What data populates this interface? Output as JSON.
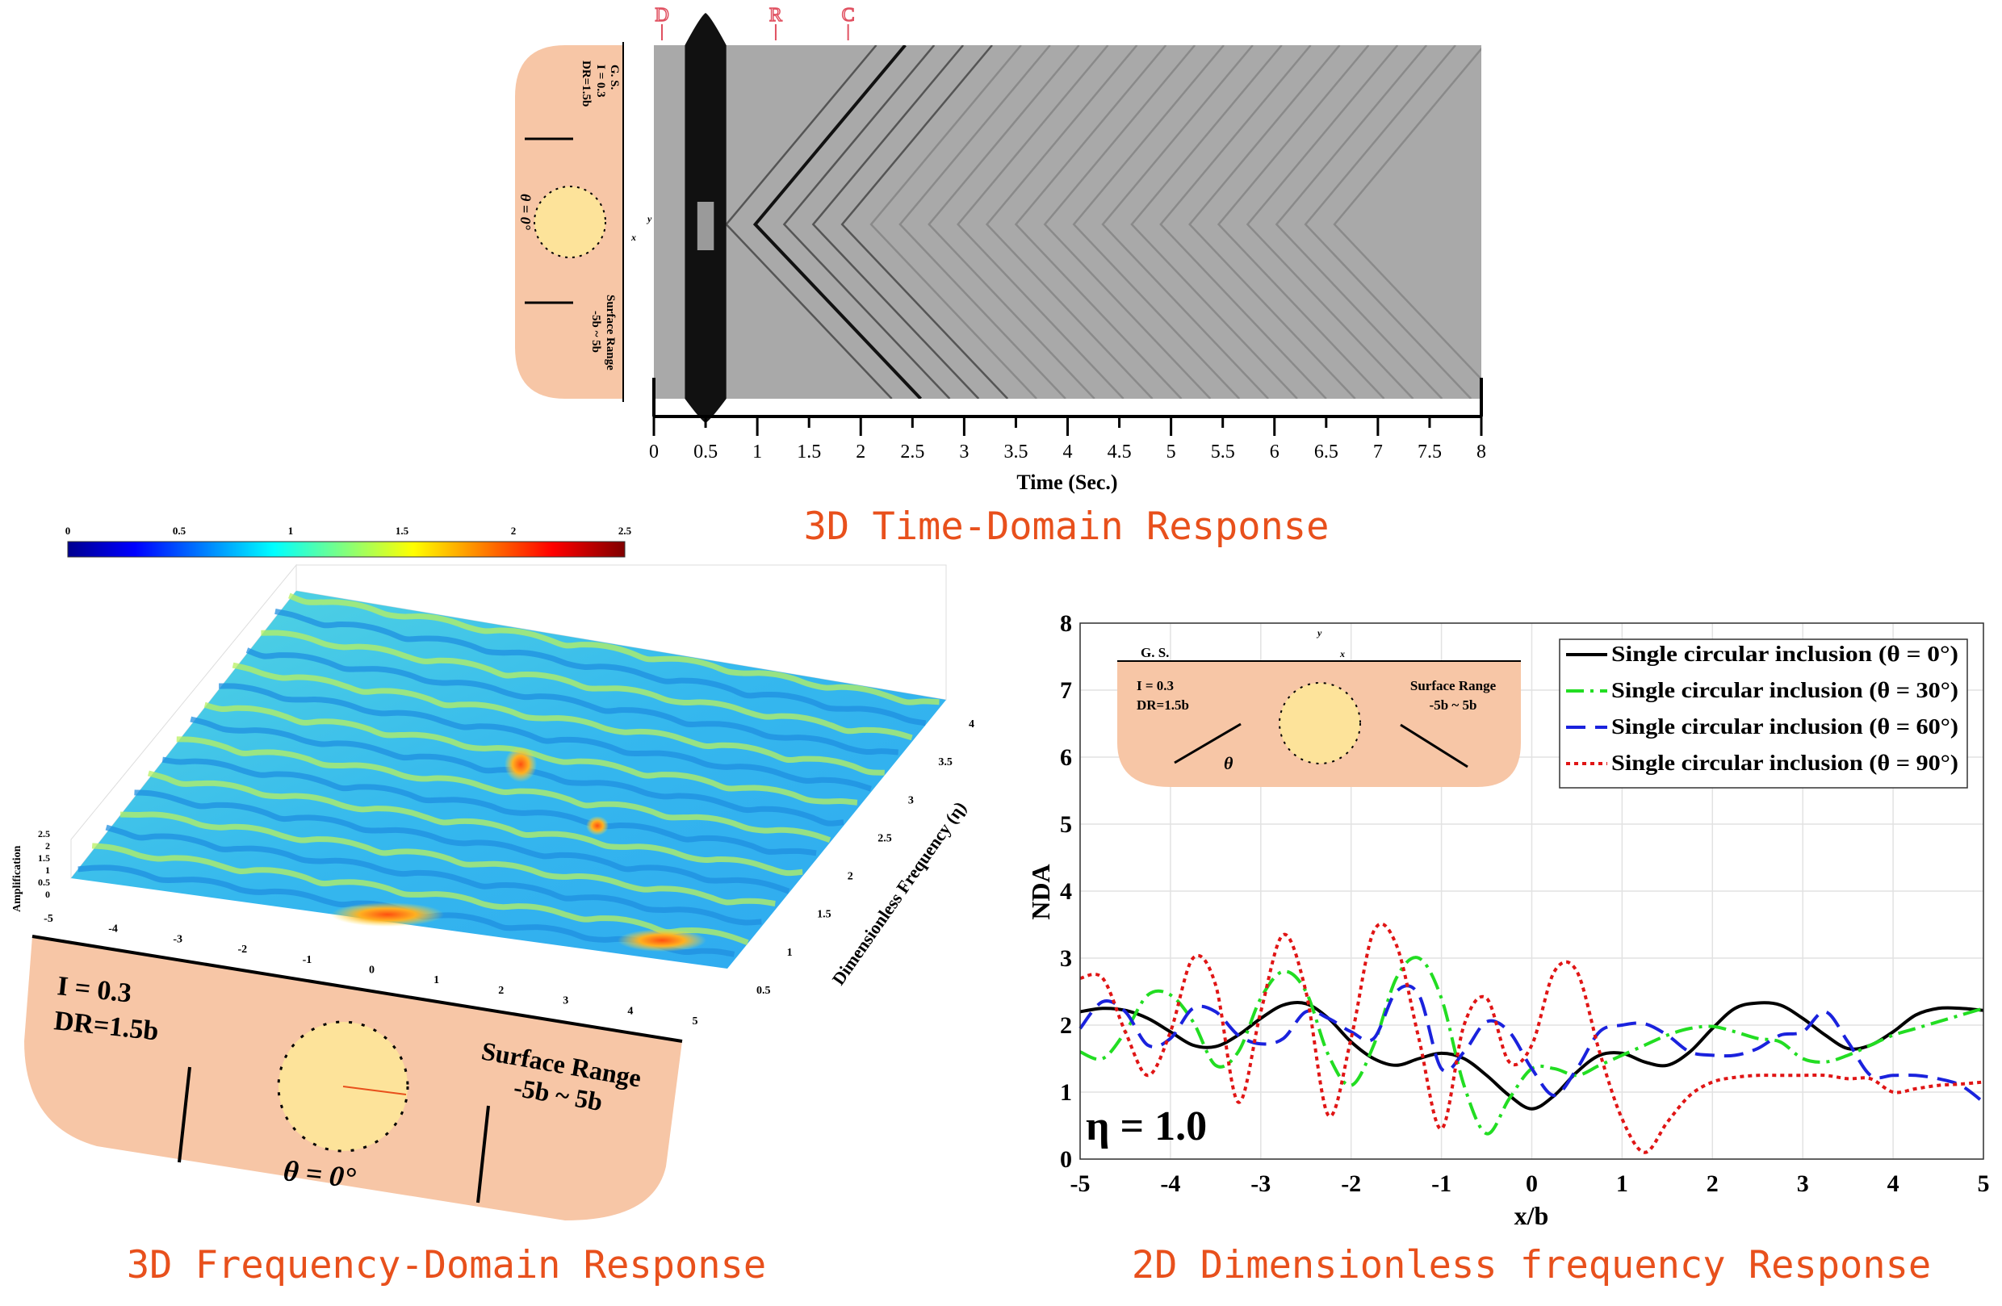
{
  "figure": {
    "time_domain": {
      "title": "3D Time-Domain Response",
      "markers": [
        "D",
        "R",
        "C"
      ],
      "inset": {
        "ground": "G. S.",
        "impedance": "I = 0.3",
        "depth": "DR=1.5b",
        "angle": "θ = 0°",
        "range_label": "Surface Range",
        "range": "-5b ~ 5b",
        "radius": "b",
        "axis_y": "y",
        "axis_x": "x"
      }
    },
    "frequency_domain": {
      "title": "3D Frequency-Domain Response",
      "inset": {
        "impedance": "I = 0.3",
        "depth": "DR=1.5b",
        "angle": "θ = 0°",
        "range_label": "Surface Range",
        "range": "-5b ~ 5b",
        "radius": "b"
      }
    },
    "dimensionless": {
      "title": "2D Dimensionless frequency Response",
      "annotation": "η = 1.0",
      "inset": {
        "ground": "G. S.",
        "impedance": "I = 0.3",
        "depth": "DR=1.5b",
        "angle": "θ",
        "range_label": "Surface Range",
        "range": "-5b ~ 5b",
        "radius": "b",
        "axis_y": "y",
        "axis_x": "x"
      }
    }
  },
  "chart_data": [
    {
      "type": "heatmap",
      "xlabel": "Time (Sec.)",
      "xlim": [
        0,
        8
      ],
      "xticks": [
        "0",
        "0.5",
        "1",
        "1.5",
        "2",
        "2.5",
        "3",
        "3.5",
        "4",
        "4.5",
        "5",
        "5.5",
        "6",
        "6.5",
        "7",
        "7.5",
        "8"
      ],
      "colormap": "gray"
    },
    {
      "type": "area",
      "zlabel": "Amplification",
      "ylabel": "Dimensionless Frequency (η)",
      "xticks": [
        "-5",
        "-4",
        "-3",
        "-2",
        "-1",
        "0",
        "1",
        "2",
        "3",
        "4",
        "5"
      ],
      "yticks": [
        "0.5",
        "1",
        "1.5",
        "2",
        "2.5",
        "3",
        "3.5",
        "4"
      ],
      "zticks": [
        "0",
        "0.5",
        "1",
        "1.5",
        "2",
        "2.5"
      ],
      "colorbar_ticks": [
        "0",
        "0.5",
        "1",
        "1.5",
        "2",
        "2.5"
      ],
      "colormap": "jet"
    },
    {
      "type": "line",
      "xlabel": "x/b",
      "ylabel": "NDA",
      "xlim": [
        -5,
        5
      ],
      "ylim": [
        0,
        8
      ],
      "xticks": [
        "-5",
        "-4",
        "-3",
        "-2",
        "-1",
        "0",
        "1",
        "2",
        "3",
        "4",
        "5"
      ],
      "yticks": [
        "0",
        "1",
        "2",
        "3",
        "4",
        "5",
        "6",
        "7",
        "8"
      ],
      "grid": true,
      "legend": "top-right",
      "x": [
        -5,
        -4.75,
        -4.5,
        -4.25,
        -4,
        -3.75,
        -3.5,
        -3.25,
        -3,
        -2.75,
        -2.5,
        -2.25,
        -2,
        -1.75,
        -1.5,
        -1.25,
        -1,
        -0.75,
        -0.5,
        -0.25,
        0,
        0.25,
        0.5,
        0.75,
        1,
        1.25,
        1.5,
        1.75,
        2,
        2.25,
        2.5,
        2.75,
        3,
        3.25,
        3.5,
        3.75,
        4,
        4.25,
        4.5,
        4.75,
        5
      ],
      "series": [
        {
          "name": "Single circular inclusion (θ = 0°)",
          "color": "#000000",
          "dash": "solid",
          "values": [
            2.2,
            2.25,
            2.22,
            2.1,
            1.9,
            1.7,
            1.68,
            1.85,
            2.1,
            2.3,
            2.32,
            2.1,
            1.75,
            1.5,
            1.4,
            1.5,
            1.58,
            1.5,
            1.25,
            0.95,
            0.75,
            0.95,
            1.3,
            1.55,
            1.58,
            1.45,
            1.4,
            1.6,
            1.95,
            2.25,
            2.33,
            2.3,
            2.1,
            1.85,
            1.65,
            1.7,
            1.9,
            2.15,
            2.25,
            2.25,
            2.22
          ]
        },
        {
          "name": "Single circular inclusion (θ = 30°)",
          "color": "#22dd22",
          "dash": "dashdot",
          "values": [
            1.6,
            1.5,
            1.9,
            2.45,
            2.45,
            2.05,
            1.4,
            1.6,
            2.4,
            2.8,
            2.5,
            1.55,
            1.1,
            1.7,
            2.7,
            3.0,
            2.4,
            1.1,
            0.38,
            0.9,
            1.35,
            1.35,
            1.25,
            1.4,
            1.55,
            1.7,
            1.85,
            1.95,
            1.98,
            1.9,
            1.8,
            1.75,
            1.5,
            1.45,
            1.55,
            1.7,
            1.85,
            1.95,
            2.05,
            2.15,
            2.25
          ]
        },
        {
          "name": "Single circular inclusion (θ = 60°)",
          "color": "#1a22dd",
          "dash": "dashed",
          "values": [
            1.95,
            2.35,
            2.2,
            1.7,
            1.8,
            2.25,
            2.2,
            1.85,
            1.72,
            1.8,
            2.2,
            2.1,
            1.9,
            1.8,
            2.5,
            2.45,
            1.35,
            1.6,
            2.05,
            1.9,
            1.35,
            0.95,
            1.35,
            1.9,
            2.0,
            2.02,
            1.85,
            1.6,
            1.55,
            1.55,
            1.65,
            1.85,
            1.9,
            2.2,
            1.75,
            1.25,
            1.25,
            1.25,
            1.2,
            1.1,
            0.85
          ]
        },
        {
          "name": "Single circular inclusion (θ = 90°)",
          "color": "#e01515",
          "dash": "dotted",
          "values": [
            2.7,
            2.7,
            1.9,
            1.25,
            1.9,
            3.0,
            2.6,
            0.85,
            2.2,
            3.35,
            2.5,
            0.65,
            1.8,
            3.4,
            3.2,
            1.8,
            0.45,
            2.0,
            2.4,
            1.45,
            1.7,
            2.8,
            2.8,
            1.6,
            0.6,
            0.1,
            0.55,
            0.95,
            1.15,
            1.22,
            1.25,
            1.25,
            1.25,
            1.25,
            1.2,
            1.2,
            1.0,
            1.05,
            1.1,
            1.12,
            1.15
          ]
        }
      ]
    }
  ]
}
